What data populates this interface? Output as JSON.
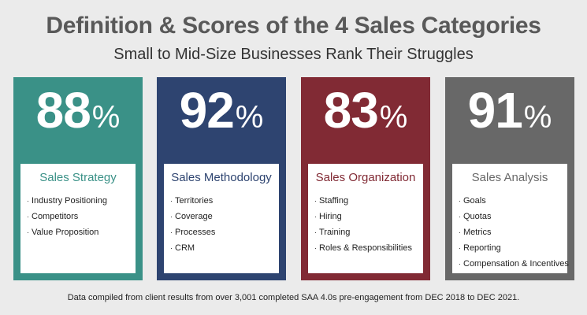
{
  "title": "Definition & Scores of the 4 Sales Categories",
  "subtitle": "Small to Mid-Size Businesses Rank Their Struggles",
  "pct_symbol": "%",
  "categories": [
    {
      "score": "88",
      "name": "Sales Strategy",
      "color": "#3a9187",
      "items": [
        "Industry Positioning",
        "Competitors",
        "Value Proposition"
      ]
    },
    {
      "score": "92",
      "name": "Sales Methodology",
      "color": "#2e4470",
      "items": [
        "Territories",
        "Coverage",
        "Processes",
        "CRM"
      ]
    },
    {
      "score": "83",
      "name": "Sales Organization",
      "color": "#812a34",
      "items": [
        "Staffing",
        "Hiring",
        "Training",
        "Roles & Responsibilities"
      ]
    },
    {
      "score": "91",
      "name": "Sales Analysis",
      "color": "#686868",
      "items": [
        "Goals",
        "Quotas",
        "Metrics",
        "Reporting",
        "Compensation & Incentives"
      ]
    }
  ],
  "footer": "Data compiled from client results from over 3,001 completed SAA 4.0s pre-engagement from DEC 2018 to DEC 2021."
}
